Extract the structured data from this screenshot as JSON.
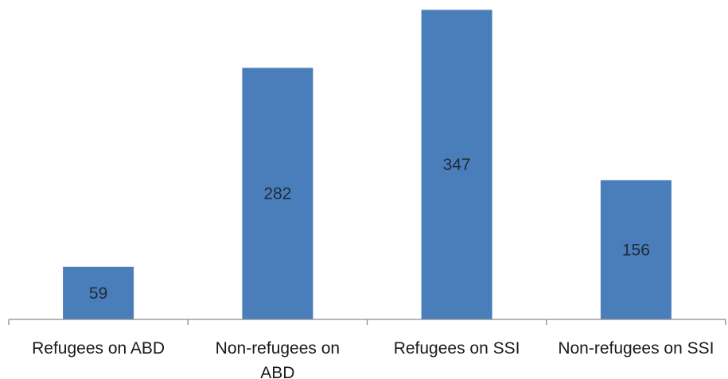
{
  "chart_data": {
    "type": "bar",
    "categories": [
      "Refugees on ABD",
      "Non-refugees on ABD",
      "Refugees on SSI",
      "Non-refugees on SSI"
    ],
    "category_lines": [
      [
        "Refugees on ABD"
      ],
      [
        "Non-refugees on",
        "ABD"
      ],
      [
        "Refugees on SSI"
      ],
      [
        "Non-refugees on SSI"
      ]
    ],
    "values": [
      59,
      282,
      347,
      156
    ],
    "data_labels": [
      "59",
      "282",
      "347",
      "156"
    ],
    "ylim": [
      0,
      350
    ],
    "grid": false,
    "legend": "none",
    "bar_color": "#4a7ebb"
  }
}
